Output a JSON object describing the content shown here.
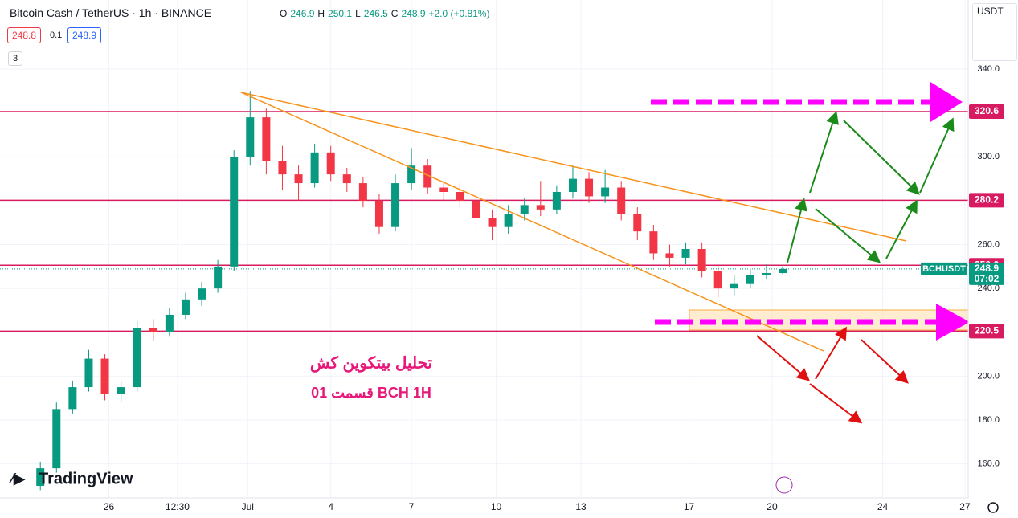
{
  "header": {
    "symbol": "Bitcoin Cash / TetherUS · 1h · BINANCE",
    "ohlc": [
      {
        "label": "O",
        "value": "246.9"
      },
      {
        "label": "H",
        "value": "250.1"
      },
      {
        "label": "L",
        "value": "246.5"
      },
      {
        "label": "C",
        "value": "248.9"
      }
    ],
    "change": "+2.0 (+0.81%)",
    "bid": "248.8",
    "spread": "0.1",
    "ask": "248.9",
    "indicators": "3",
    "currency": "USDT",
    "logo": "TradingView"
  },
  "chart_data": {
    "type": "candlestick",
    "x": [
      5,
      7,
      9,
      11,
      13,
      15,
      17,
      19,
      21,
      23,
      25,
      27,
      29,
      31,
      33,
      35,
      37,
      39,
      41,
      43,
      45,
      47,
      49,
      51,
      53,
      55,
      57,
      59,
      61,
      63,
      65,
      67,
      69,
      71,
      73,
      75,
      77,
      79,
      81,
      83,
      85,
      87,
      89,
      91,
      93,
      95,
      97
    ],
    "open": [
      150,
      158,
      185,
      195,
      208,
      192,
      195,
      222,
      220,
      228,
      235,
      240,
      250,
      300,
      318,
      298,
      292,
      288,
      302,
      292,
      288,
      280,
      268,
      288,
      296,
      286,
      284,
      280,
      272,
      268,
      274,
      278,
      276,
      284,
      290,
      282,
      286,
      274,
      266,
      256,
      254,
      258,
      248,
      240,
      242,
      246,
      247
    ],
    "high": [
      161,
      188,
      198,
      212,
      210,
      198,
      225,
      226,
      231,
      238,
      243,
      253,
      303,
      330,
      322,
      305,
      296,
      306,
      305,
      295,
      291,
      283,
      292,
      304,
      299,
      289,
      288,
      283,
      276,
      278,
      281,
      289,
      287,
      296,
      293,
      294,
      289,
      277,
      269,
      260,
      261,
      261,
      251,
      246,
      249,
      251,
      250.1
    ],
    "low": [
      148,
      156,
      183,
      193,
      189,
      188,
      193,
      216,
      218,
      226,
      232,
      238,
      248,
      296,
      292,
      285,
      280,
      286,
      289,
      284,
      277,
      265,
      266,
      285,
      283,
      280,
      277,
      268,
      262,
      265,
      271,
      273,
      274,
      281,
      279,
      279,
      271,
      262,
      253,
      250,
      251,
      245,
      236,
      237,
      240,
      244,
      246.5
    ],
    "close": [
      158,
      185,
      195,
      208,
      192,
      195,
      222,
      220,
      228,
      235,
      240,
      250,
      300,
      318,
      298,
      292,
      288,
      302,
      292,
      288,
      280,
      268,
      288,
      296,
      286,
      284,
      280,
      272,
      268,
      274,
      278,
      276,
      284,
      290,
      282,
      286,
      274,
      266,
      256,
      254,
      258,
      248,
      240,
      242,
      246,
      247,
      248.9
    ],
    "up_color": "#089981",
    "down_color": "#f23645",
    "xlim": [
      0,
      120
    ],
    "xticks": [
      {
        "value": 13.5,
        "label": "26"
      },
      {
        "value": 22,
        "label": "12:30"
      },
      {
        "value": 30.7,
        "label": "Jul"
      },
      {
        "value": 41,
        "label": "4"
      },
      {
        "value": 51,
        "label": "7"
      },
      {
        "value": 61.5,
        "label": "10"
      },
      {
        "value": 72,
        "label": "13"
      },
      {
        "value": 85.4,
        "label": "17"
      },
      {
        "value": 95.7,
        "label": "20"
      },
      {
        "value": 109.4,
        "label": "24"
      },
      {
        "value": 119.6,
        "label": "27"
      }
    ],
    "ylim": [
      144.5,
      371.5
    ],
    "yticks": [
      {
        "value": 160,
        "label": "160.0"
      },
      {
        "value": 180,
        "label": "180.0"
      },
      {
        "value": 200,
        "label": "200.0"
      },
      {
        "value": 240,
        "label": "240.0"
      },
      {
        "value": 260,
        "label": "260.0"
      },
      {
        "value": 300,
        "label": "300.0"
      },
      {
        "value": 340,
        "label": "340.0"
      }
    ],
    "grid": true,
    "levels": [
      320.6,
      280.2,
      250.6,
      220.5
    ],
    "level_color": "#d81b60",
    "last_price": 248.9,
    "last_symbol": "BCHUSDT",
    "countdown": "07:02",
    "annotations": [
      "تحلیل بیتکوین کش",
      "01 قسمت   BCH   1H"
    ]
  }
}
